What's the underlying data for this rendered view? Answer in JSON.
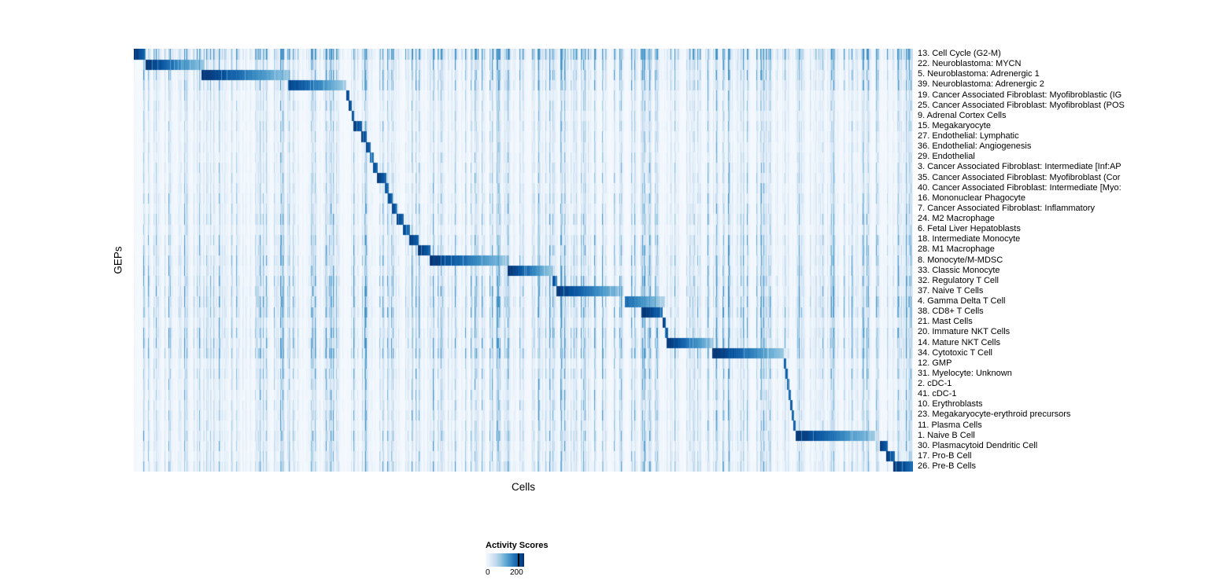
{
  "chart_data": {
    "type": "heatmap",
    "title": "",
    "xlabel": "Cells",
    "ylabel": "GEPs",
    "legend": {
      "title": "Activity Scores",
      "min_label": "0",
      "max_label": "200",
      "min": 0,
      "max": 200,
      "position": "bottom"
    },
    "colormap": "Blues",
    "colormap_stops": [
      {
        "t": 0.0,
        "color": "#f7fbff"
      },
      {
        "t": 0.125,
        "color": "#deebf7"
      },
      {
        "t": 0.25,
        "color": "#c6dbef"
      },
      {
        "t": 0.375,
        "color": "#9ecae1"
      },
      {
        "t": 0.5,
        "color": "#6baed6"
      },
      {
        "t": 0.625,
        "color": "#4292c6"
      },
      {
        "t": 0.75,
        "color": "#2171b5"
      },
      {
        "t": 0.875,
        "color": "#08519c"
      },
      {
        "t": 1.0,
        "color": "#08306b"
      }
    ],
    "grid": false,
    "x_axis_ticks": [],
    "rows": [
      {
        "label": "13. Cell Cycle (G2-M)",
        "block_start": 0.0,
        "block_end": 0.015,
        "peak": 1.0,
        "noise": 2.6
      },
      {
        "label": "22. Neuroblastoma: MYCN",
        "block_start": 0.015,
        "block_end": 0.09,
        "peak": 1.0,
        "noise": 1.4
      },
      {
        "label": "5. Neuroblastoma: Adrenergic 1",
        "block_start": 0.086,
        "block_end": 0.2,
        "peak": 1.0,
        "noise": 1.4
      },
      {
        "label": "39. Neuroblastoma: Adrenergic 2",
        "block_start": 0.198,
        "block_end": 0.272,
        "peak": 0.95,
        "noise": 1.3
      },
      {
        "label": "19. Cancer Associated Fibroblast: Myofibroblastic (IG",
        "block_start": 0.272,
        "block_end": 0.277,
        "peak": 1.0,
        "noise": 0.9
      },
      {
        "label": "25. Cancer Associated Fibroblast: Myofibroblast (POS",
        "block_start": 0.276,
        "block_end": 0.28,
        "peak": 0.95,
        "noise": 0.9
      },
      {
        "label": "9. Adrenal Cortex Cells",
        "block_start": 0.28,
        "block_end": 0.283,
        "peak": 0.95,
        "noise": 0.8
      },
      {
        "label": "15. Megakaryocyte",
        "block_start": 0.282,
        "block_end": 0.293,
        "peak": 1.0,
        "noise": 0.9
      },
      {
        "label": "27. Endothelial: Lymphatic",
        "block_start": 0.292,
        "block_end": 0.299,
        "peak": 1.0,
        "noise": 0.8
      },
      {
        "label": "36. Endothelial: Angiogenesis",
        "block_start": 0.298,
        "block_end": 0.304,
        "peak": 0.95,
        "noise": 0.8
      },
      {
        "label": "29. Endothelial",
        "block_start": 0.303,
        "block_end": 0.308,
        "peak": 0.9,
        "noise": 0.8
      },
      {
        "label": "3. Cancer Associated Fibroblast: Intermediate [Inf:AP",
        "block_start": 0.307,
        "block_end": 0.313,
        "peak": 0.95,
        "noise": 0.9
      },
      {
        "label": "35. Cancer Associated Fibroblast: Myofibroblast (Cor",
        "block_start": 0.312,
        "block_end": 0.324,
        "peak": 1.0,
        "noise": 0.9
      },
      {
        "label": "40. Cancer Associated Fibroblast: Intermediate [Myo:",
        "block_start": 0.322,
        "block_end": 0.327,
        "peak": 0.9,
        "noise": 0.9
      },
      {
        "label": "16. Mononuclear Phagocyte",
        "block_start": 0.326,
        "block_end": 0.332,
        "peak": 0.95,
        "noise": 1.0
      },
      {
        "label": "7. Cancer Associated Fibroblast: Inflammatory",
        "block_start": 0.331,
        "block_end": 0.338,
        "peak": 0.95,
        "noise": 1.0
      },
      {
        "label": "24. M2 Macrophage",
        "block_start": 0.337,
        "block_end": 0.346,
        "peak": 1.0,
        "noise": 1.1
      },
      {
        "label": "6. Fetal Liver Hepatoblasts",
        "block_start": 0.345,
        "block_end": 0.354,
        "peak": 0.95,
        "noise": 0.9
      },
      {
        "label": "18. Intermediate Monocyte",
        "block_start": 0.353,
        "block_end": 0.366,
        "peak": 1.0,
        "noise": 1.2
      },
      {
        "label": "28. M1 Macrophage",
        "block_start": 0.365,
        "block_end": 0.381,
        "peak": 1.0,
        "noise": 1.2
      },
      {
        "label": "8. Monocyte/M-MDSC",
        "block_start": 0.38,
        "block_end": 0.48,
        "peak": 1.0,
        "noise": 1.3
      },
      {
        "label": "33. Classic Monocyte",
        "block_start": 0.48,
        "block_end": 0.537,
        "peak": 1.0,
        "noise": 1.2
      },
      {
        "label": "32. Regulatory T Cell",
        "block_start": 0.537,
        "block_end": 0.543,
        "peak": 0.95,
        "noise": 1.5
      },
      {
        "label": "37. Naive T Cells",
        "block_start": 0.542,
        "block_end": 0.628,
        "peak": 1.0,
        "noise": 1.5
      },
      {
        "label": "4. Gamma Delta T Cell",
        "block_start": 0.63,
        "block_end": 0.682,
        "peak": 0.8,
        "noise": 1.6
      },
      {
        "label": "38. CD8+ T Cells",
        "block_start": 0.652,
        "block_end": 0.679,
        "peak": 1.0,
        "noise": 1.6
      },
      {
        "label": "21. Mast Cells",
        "block_start": 0.679,
        "block_end": 0.683,
        "peak": 1.0,
        "noise": 1.2
      },
      {
        "label": "20. Immature NKT Cells",
        "block_start": 0.682,
        "block_end": 0.686,
        "peak": 0.95,
        "noise": 1.5
      },
      {
        "label": "14. Mature NKT Cells",
        "block_start": 0.684,
        "block_end": 0.744,
        "peak": 1.0,
        "noise": 1.6
      },
      {
        "label": "34. Cytotoxic T Cell",
        "block_start": 0.743,
        "block_end": 0.835,
        "peak": 1.0,
        "noise": 1.6
      },
      {
        "label": "12. GMP",
        "block_start": 0.835,
        "block_end": 0.838,
        "peak": 0.9,
        "noise": 1.0
      },
      {
        "label": "31. Myelocyte: Unknown",
        "block_start": 0.837,
        "block_end": 0.84,
        "peak": 0.9,
        "noise": 1.2
      },
      {
        "label": "2. cDC-1",
        "block_start": 0.839,
        "block_end": 0.842,
        "peak": 0.9,
        "noise": 1.0
      },
      {
        "label": "41. cDC-1",
        "block_start": 0.841,
        "block_end": 0.844,
        "peak": 0.85,
        "noise": 1.0
      },
      {
        "label": "10. Erythroblasts",
        "block_start": 0.843,
        "block_end": 0.846,
        "peak": 0.9,
        "noise": 1.0
      },
      {
        "label": "23. Megakaryocyte-erythroid precursors",
        "block_start": 0.845,
        "block_end": 0.848,
        "peak": 0.85,
        "noise": 1.1
      },
      {
        "label": "11. Plasma Cells",
        "block_start": 0.847,
        "block_end": 0.85,
        "peak": 0.9,
        "noise": 1.0
      },
      {
        "label": "1. Naive B Cell",
        "block_start": 0.85,
        "block_end": 0.952,
        "peak": 1.0,
        "noise": 1.2
      },
      {
        "label": "30. Plasmacytoid Dendritic Cell",
        "block_start": 0.958,
        "block_end": 0.968,
        "peak": 1.0,
        "noise": 1.0
      },
      {
        "label": "17. Pro-B Cell",
        "block_start": 0.966,
        "block_end": 0.977,
        "peak": 1.0,
        "noise": 1.0
      },
      {
        "label": "26. Pre-B Cells",
        "block_start": 0.975,
        "block_end": 1.0,
        "peak": 1.0,
        "noise": 1.2
      }
    ]
  }
}
